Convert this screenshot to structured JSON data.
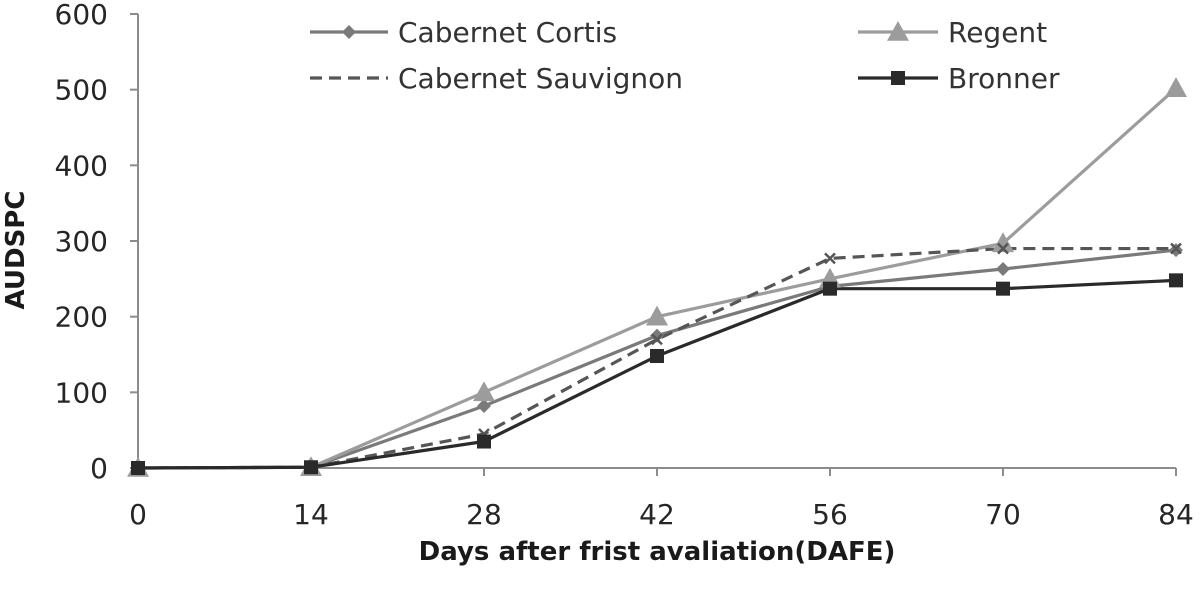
{
  "chart_data": {
    "type": "line",
    "x": [
      0,
      14,
      28,
      42,
      56,
      70,
      84
    ],
    "xlabel": "Days after frist avaliation(DAFE)",
    "ylabel": "AUDSPC",
    "ylim": [
      0,
      600
    ],
    "yticks": [
      0,
      100,
      200,
      300,
      400,
      500,
      600
    ],
    "xticks": [
      0,
      14,
      28,
      42,
      56,
      70,
      84
    ],
    "legend_position": "top",
    "grid": false,
    "series": [
      {
        "name": "Cabernet Cortis",
        "values": [
          0,
          1,
          82,
          175,
          240,
          263,
          288
        ],
        "color": "#7a7a7a",
        "marker": "diamond",
        "dash": "solid"
      },
      {
        "name": "Regent",
        "values": [
          0,
          1,
          100,
          200,
          250,
          297,
          502
        ],
        "color": "#9c9c9c",
        "marker": "triangle",
        "dash": "solid"
      },
      {
        "name": "Cabernet Sauvignon",
        "values": [
          0,
          1,
          45,
          170,
          277,
          290,
          290
        ],
        "color": "#565656",
        "marker": "x",
        "dash": "dashed"
      },
      {
        "name": "Bronner",
        "values": [
          0,
          1,
          35,
          148,
          237,
          237,
          248
        ],
        "color": "#2a2a2a",
        "marker": "square",
        "dash": "solid"
      }
    ]
  }
}
